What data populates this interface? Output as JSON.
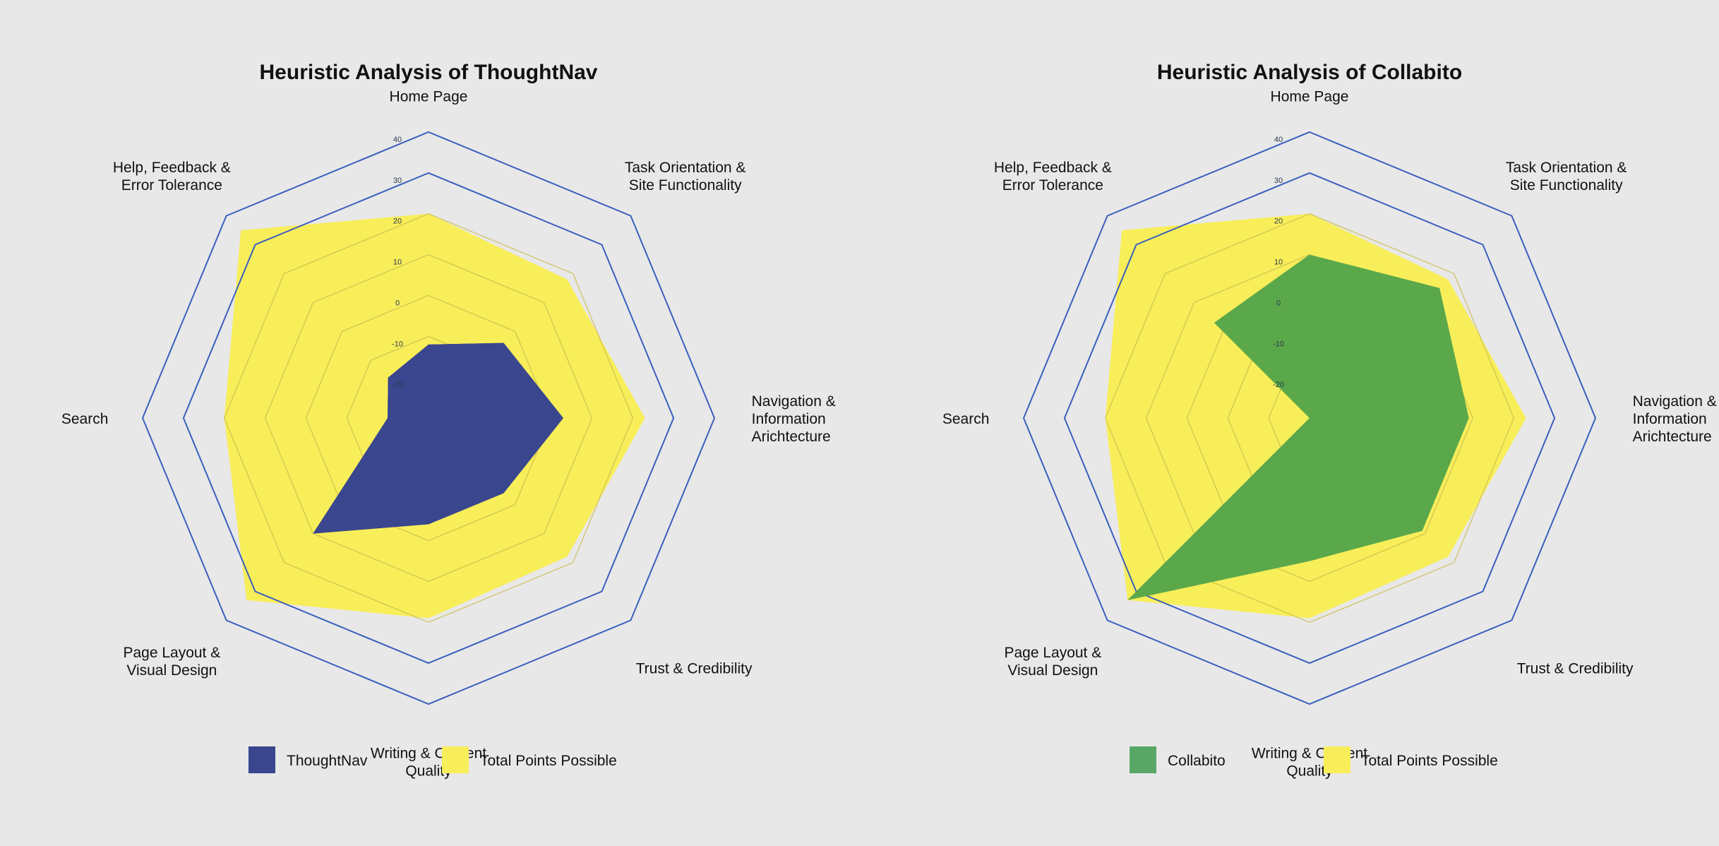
{
  "colors": {
    "background": "#e8e8e8",
    "grid_outer": "#3a5fbf",
    "grid_inner": "#c9b94c",
    "total": "#f8ee5a",
    "thoughtnav": "#3a468e",
    "collabito": "#5aa84a",
    "collabito_legend": "#58a766"
  },
  "chart_data": [
    {
      "type": "radar",
      "title": "Heuristic Analysis of ThoughtNav",
      "categories": [
        [
          "Home Page"
        ],
        [
          "Task Orientation &",
          "Site Functionality"
        ],
        [
          "Navigation &",
          "Information",
          "Arichtecture"
        ],
        [
          "Trust & Credibility"
        ],
        [
          "Writing & Content",
          "Quality"
        ],
        [
          "Page Layout &",
          "Visual Design"
        ],
        [
          "Search"
        ],
        [
          "Help, Feedback &",
          "Error Tolerance"
        ]
      ],
      "rlim": [
        -30,
        40
      ],
      "ticks": [
        "40",
        "30",
        "20",
        "10",
        "0",
        "-10",
        "-20"
      ],
      "series": [
        {
          "name": "Total Points Possible",
          "color_key": "total",
          "values": [
            20,
            18,
            23,
            18,
            19,
            33,
            20,
            35
          ]
        },
        {
          "name": "ThoughtNav",
          "color_key": "thoughtnav",
          "values": [
            -12,
            -4,
            3,
            -4,
            -4,
            10,
            -20,
            -16
          ]
        }
      ],
      "legend": [
        {
          "label": "ThoughtNav",
          "color_key": "thoughtnav"
        },
        {
          "label": "Total Points Possible",
          "color_key": "total"
        }
      ],
      "legend_position": "bottom"
    },
    {
      "type": "radar",
      "title": "Heuristic Analysis of Collabito",
      "categories": [
        [
          "Home Page"
        ],
        [
          "Task Orientation &",
          "Site Functionality"
        ],
        [
          "Navigation &",
          "Information",
          "Arichtecture"
        ],
        [
          "Trust & Credibility"
        ],
        [
          "Writing & Content",
          "Quality"
        ],
        [
          "Page Layout &",
          "Visual Design"
        ],
        [
          "Search"
        ],
        [
          "Help, Feedback &",
          "Error Tolerance"
        ]
      ],
      "rlim": [
        -30,
        40
      ],
      "ticks": [
        "40",
        "30",
        "20",
        "10",
        "0",
        "-10",
        "-20"
      ],
      "series": [
        {
          "name": "Total Points Possible",
          "color_key": "total",
          "values": [
            20,
            18,
            23,
            18,
            19,
            33,
            20,
            35
          ]
        },
        {
          "name": "Collabito",
          "color_key": "collabito",
          "values": [
            10,
            15,
            9,
            9,
            5,
            33,
            -30,
            3
          ]
        }
      ],
      "legend": [
        {
          "label": "Collabito",
          "color_key": "collabito_legend"
        },
        {
          "label": "Total Points Possible",
          "color_key": "total"
        }
      ],
      "legend_position": "bottom"
    }
  ]
}
